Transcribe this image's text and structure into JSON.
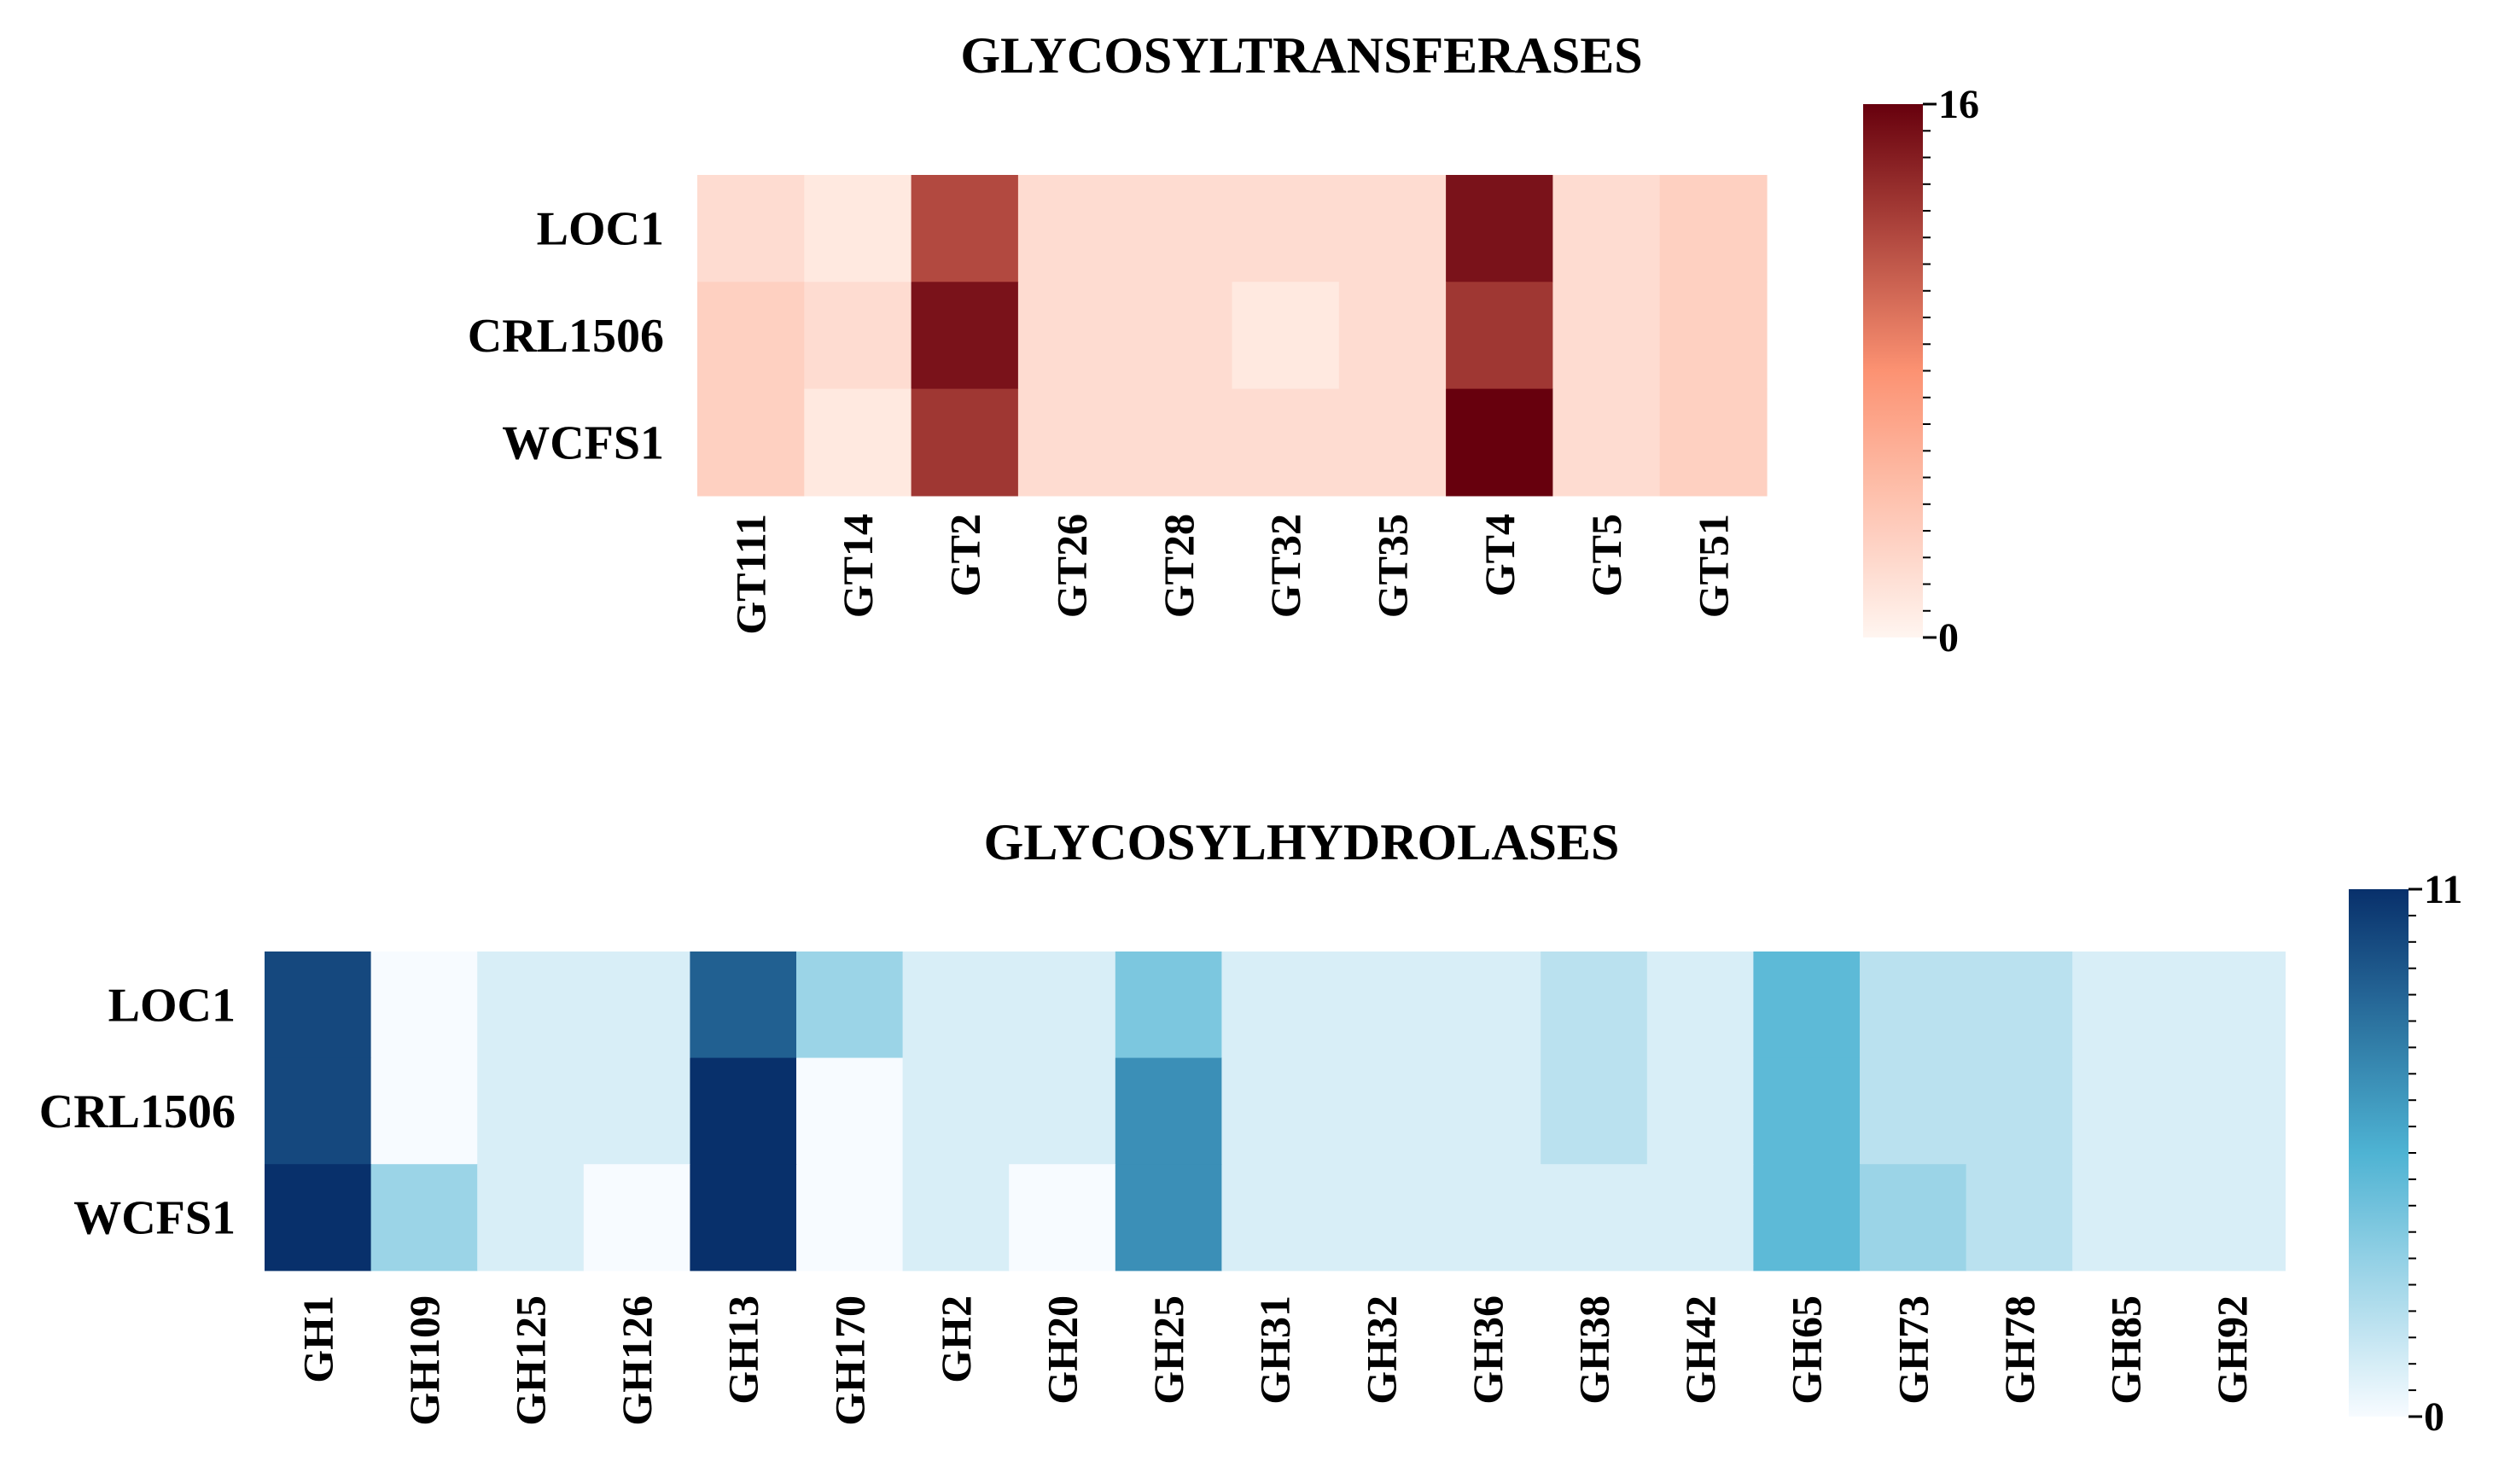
{
  "chart_data": [
    {
      "type": "heatmap",
      "title": "GLYCOSYLTRANSFERASES",
      "rows": [
        "LOC1",
        "CRL1506",
        "WCFS1"
      ],
      "columns": [
        "GT111",
        "GT14",
        "GT2",
        "GT26",
        "GT28",
        "GT32",
        "GT35",
        "GT4",
        "GT5",
        "GT51"
      ],
      "values": [
        [
          2,
          1,
          12,
          2,
          2,
          2,
          2,
          15,
          2,
          3
        ],
        [
          3,
          2,
          15,
          2,
          2,
          1,
          2,
          13,
          2,
          3
        ],
        [
          3,
          1,
          13,
          2,
          2,
          2,
          2,
          16,
          2,
          3
        ]
      ],
      "colormap": "Reds",
      "colors": {
        "low": "#fff5f0",
        "mid": "#fc9272",
        "high": "#67000d"
      },
      "colorbar": {
        "min": 0,
        "max": 16,
        "min_label": "0",
        "max_label": "16"
      }
    },
    {
      "type": "heatmap",
      "title": "GLYCOSYLHYDROLASES",
      "rows": [
        "LOC1",
        "CRL1506",
        "WCFS1"
      ],
      "columns": [
        "GH1",
        "GH109",
        "GH125",
        "GH126",
        "GH13",
        "GH170",
        "GH2",
        "GH20",
        "GH25",
        "GH31",
        "GH32",
        "GH36",
        "GH38",
        "GH42",
        "GH65",
        "GH73",
        "GH78",
        "GH85",
        "GH92"
      ],
      "values": [
        [
          10,
          0,
          1,
          1,
          9,
          3,
          1,
          1,
          4,
          1,
          1,
          1,
          2,
          1,
          5,
          2,
          2,
          1,
          1
        ],
        [
          10,
          0,
          1,
          1,
          11,
          0,
          1,
          1,
          7,
          1,
          1,
          1,
          2,
          1,
          5,
          2,
          2,
          1,
          1
        ],
        [
          11,
          3,
          1,
          0,
          11,
          0,
          1,
          0,
          7,
          1,
          1,
          1,
          1,
          1,
          5,
          3,
          2,
          1,
          1
        ]
      ],
      "colormap": "Blues",
      "colors": {
        "low": "#f7fbff",
        "mid": "#4eb3d3",
        "high": "#08306b"
      },
      "colorbar": {
        "min": 0,
        "max": 11,
        "min_label": "0",
        "max_label": "11"
      }
    }
  ]
}
